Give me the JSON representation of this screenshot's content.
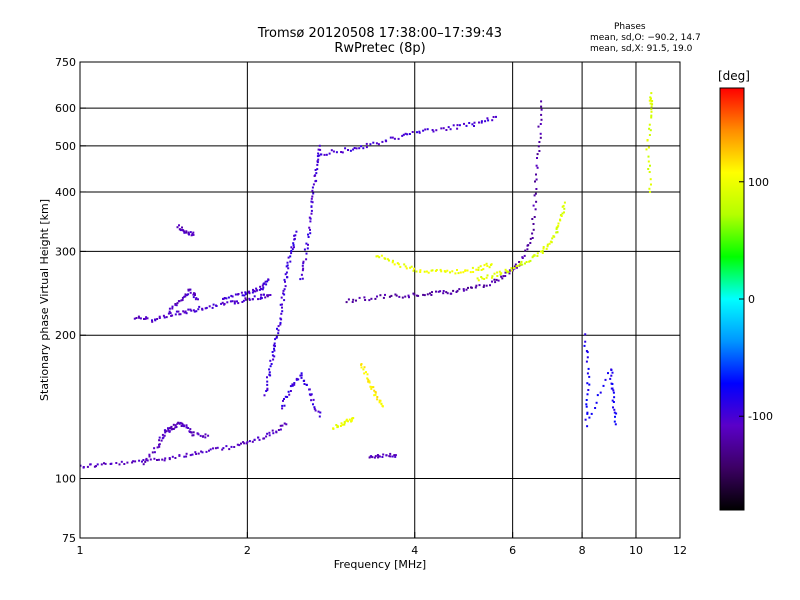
{
  "chart_data": {
    "type": "scatter",
    "title": "Tromsø 20120508 17:38:00–17:39:43",
    "subtitle": "RwPretec (8p)",
    "xlabel": "Frequency [MHz]",
    "ylabel": "Stationary phase Virtual Height [km]",
    "x_scale": "log",
    "y_scale": "log",
    "xlim": [
      1,
      12
    ],
    "ylim": [
      75,
      750
    ],
    "x_ticks": [
      1,
      2,
      4,
      6,
      8,
      10,
      12
    ],
    "x_tick_labels": [
      "1",
      "2",
      "4",
      "6",
      "8",
      "10",
      "12"
    ],
    "y_ticks": [
      75,
      100,
      200,
      300,
      400,
      500,
      600,
      750
    ],
    "y_tick_labels": [
      "75",
      "100",
      "200",
      "300",
      "400",
      "500",
      "600",
      "750"
    ],
    "x_gridlines": [
      2,
      4,
      6,
      8,
      10
    ],
    "y_gridlines": [
      100,
      200,
      300,
      400,
      500,
      600
    ],
    "grid": true,
    "annotation": {
      "heading": "Phases",
      "line1": "mean, sd,O: −90.2, 14.7",
      "line2": "mean, sd,X:  91.5, 19.0"
    },
    "colorbar": {
      "unit": "[deg]",
      "min": -180,
      "max": 180,
      "ticks": [
        100,
        0,
        -100
      ],
      "tick_labels": [
        "100",
        "0",
        "-100"
      ],
      "colors": [
        "#000000",
        "#3c0064",
        "#5a00c8",
        "#0000ff",
        "#0096ff",
        "#00ffff",
        "#00ff00",
        "#b4ff00",
        "#ffff00",
        "#ff8c00",
        "#ff0000"
      ]
    },
    "traces": [
      {
        "name": "",
        "phase": -110,
        "points": [
          [
            1.0,
            106
          ],
          [
            1.1,
            107
          ],
          [
            1.25,
            108
          ],
          [
            1.4,
            110
          ],
          [
            1.55,
            112
          ],
          [
            1.7,
            114
          ],
          [
            1.9,
            117
          ],
          [
            2.05,
            120
          ],
          [
            2.2,
            124
          ],
          [
            2.35,
            130
          ]
        ]
      },
      {
        "name": "",
        "phase": -110,
        "points": [
          [
            1.3,
            108
          ],
          [
            1.38,
            117
          ],
          [
            1.42,
            125
          ],
          [
            1.46,
            127
          ],
          [
            1.5,
            130
          ],
          [
            1.55,
            129
          ],
          [
            1.6,
            124
          ],
          [
            1.7,
            123
          ]
        ]
      },
      {
        "name": "",
        "phase": -105,
        "points": [
          [
            1.25,
            218
          ],
          [
            1.35,
            215
          ],
          [
            1.45,
            221
          ],
          [
            1.55,
            224
          ],
          [
            1.65,
            228
          ],
          [
            1.8,
            232
          ],
          [
            1.95,
            236
          ],
          [
            2.1,
            240
          ],
          [
            2.2,
            243
          ]
        ]
      },
      {
        "name": "",
        "phase": -105,
        "points": [
          [
            1.45,
            225
          ],
          [
            1.52,
            238
          ],
          [
            1.58,
            248
          ],
          [
            1.63,
            238
          ]
        ]
      },
      {
        "name": "",
        "phase": -100,
        "points": [
          [
            1.8,
            238
          ],
          [
            1.95,
            244
          ],
          [
            2.05,
            247
          ],
          [
            2.12,
            252
          ],
          [
            2.18,
            262
          ]
        ]
      },
      {
        "name": "",
        "phase": -95,
        "points": [
          [
            2.15,
            150
          ],
          [
            2.2,
            170
          ],
          [
            2.24,
            190
          ],
          [
            2.28,
            210
          ],
          [
            2.32,
            240
          ],
          [
            2.35,
            270
          ],
          [
            2.4,
            300
          ],
          [
            2.45,
            330
          ]
        ]
      },
      {
        "name": "",
        "phase": -95,
        "points": [
          [
            2.3,
            140
          ],
          [
            2.4,
            155
          ],
          [
            2.5,
            165
          ],
          [
            2.6,
            150
          ],
          [
            2.7,
            135
          ]
        ]
      },
      {
        "name": "",
        "phase": -100,
        "points": [
          [
            2.5,
            260
          ],
          [
            2.55,
            300
          ],
          [
            2.6,
            350
          ],
          [
            2.63,
            400
          ],
          [
            2.66,
            450
          ],
          [
            2.7,
            500
          ]
        ]
      },
      {
        "name": "",
        "phase": -100,
        "points": [
          [
            2.7,
            480
          ],
          [
            3.0,
            490
          ],
          [
            3.3,
            500
          ],
          [
            3.7,
            520
          ],
          [
            4.1,
            535
          ],
          [
            4.6,
            545
          ],
          [
            5.1,
            555
          ],
          [
            5.6,
            575
          ]
        ]
      },
      {
        "name": "",
        "phase": -120,
        "points": [
          [
            3.0,
            236
          ],
          [
            3.4,
            240
          ],
          [
            3.8,
            242
          ],
          [
            4.2,
            244
          ],
          [
            4.6,
            246
          ],
          [
            5.0,
            250
          ],
          [
            5.5,
            258
          ],
          [
            5.9,
            270
          ],
          [
            6.2,
            285
          ],
          [
            6.5,
            320
          ],
          [
            6.6,
            400
          ],
          [
            6.7,
            500
          ],
          [
            6.75,
            620
          ]
        ]
      },
      {
        "name": "",
        "phase": 100,
        "points": [
          [
            3.4,
            295
          ],
          [
            3.7,
            282
          ],
          [
            4.0,
            275
          ],
          [
            4.4,
            272
          ],
          [
            4.8,
            272
          ],
          [
            5.2,
            275
          ],
          [
            5.5,
            282
          ]
        ]
      },
      {
        "name": "",
        "phase": 90,
        "points": [
          [
            5.2,
            262
          ],
          [
            5.6,
            268
          ],
          [
            6.0,
            276
          ],
          [
            6.4,
            287
          ],
          [
            6.8,
            300
          ],
          [
            7.1,
            320
          ],
          [
            7.3,
            345
          ],
          [
            7.45,
            380
          ]
        ]
      },
      {
        "name": "",
        "phase": 110,
        "points": [
          [
            3.2,
            175
          ],
          [
            3.3,
            160
          ],
          [
            3.4,
            150
          ],
          [
            3.5,
            142
          ]
        ]
      },
      {
        "name": "",
        "phase": 100,
        "points": [
          [
            2.85,
            128
          ],
          [
            3.0,
            131
          ],
          [
            3.1,
            134
          ]
        ]
      },
      {
        "name": "",
        "phase": -110,
        "points": [
          [
            3.3,
            111
          ],
          [
            3.5,
            112
          ],
          [
            3.7,
            112
          ]
        ]
      },
      {
        "name": "",
        "phase": -110,
        "points": [
          [
            1.5,
            338
          ],
          [
            1.55,
            330
          ],
          [
            1.6,
            325
          ]
        ]
      },
      {
        "name": "",
        "phase": 90,
        "points": [
          [
            10.6,
            640
          ],
          [
            10.7,
            600
          ],
          [
            10.5,
            500
          ],
          [
            10.6,
            400
          ]
        ]
      },
      {
        "name": "",
        "phase": -80,
        "points": [
          [
            8.1,
            200
          ],
          [
            8.2,
            160
          ],
          [
            8.15,
            130
          ],
          [
            9.0,
            170
          ],
          [
            9.1,
            150
          ],
          [
            9.2,
            130
          ]
        ]
      }
    ]
  }
}
